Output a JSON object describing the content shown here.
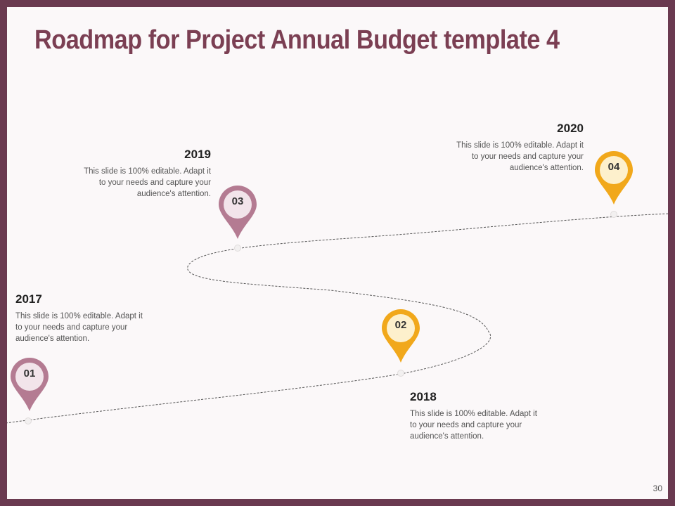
{
  "slide": {
    "title": "Roadmap for Project Annual Budget template 4",
    "page_number": "30"
  },
  "colors": {
    "frame": "#6a3a50",
    "title": "#7b3f53",
    "pin_mauve": "#b47b92",
    "pin_mauve_inner": "#f2e4ea",
    "pin_gold": "#f1a81b",
    "pin_gold_inner": "#fdf0cc"
  },
  "milestones": [
    {
      "number": "01",
      "year": "2017",
      "text": "This slide is 100% editable. Adapt it to your needs and capture your audience's attention.",
      "color": "mauve"
    },
    {
      "number": "02",
      "year": "2018",
      "text": "This slide is 100% editable. Adapt it to your needs and capture your audience's attention.",
      "color": "gold"
    },
    {
      "number": "03",
      "year": "2019",
      "text": "This slide is 100% editable. Adapt it to your needs and capture your audience's attention.",
      "color": "mauve"
    },
    {
      "number": "04",
      "year": "2020",
      "text": "This slide is 100% editable. Adapt it to your needs and capture your audience's attention.",
      "color": "gold"
    }
  ]
}
